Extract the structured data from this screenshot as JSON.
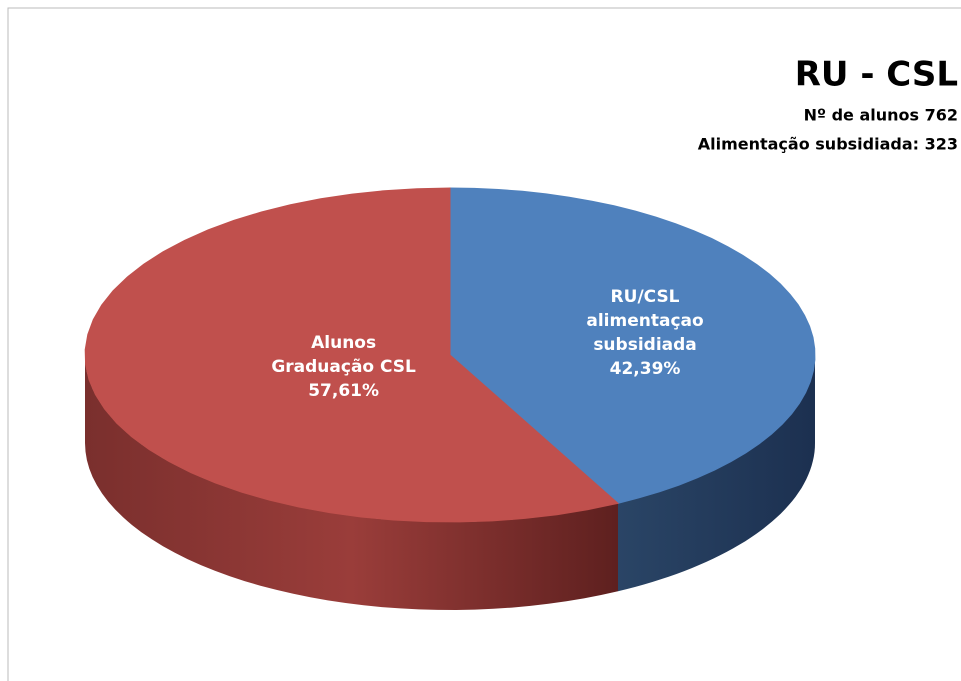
{
  "chart_data": {
    "type": "pie",
    "title": "RU - CSL",
    "subtitle": [
      "Nº de alunos 762",
      "Alimentação subsidiada: 323"
    ],
    "categories": [
      "RU/CSL\nalimentaçao\nsubsidiada",
      "Alunos\nGraduação CSL"
    ],
    "values": [
      42.39,
      57.61
    ],
    "value_labels": [
      "42,39%",
      "57,61%"
    ],
    "colors": [
      "#4f81bd",
      "#c0504d"
    ]
  }
}
